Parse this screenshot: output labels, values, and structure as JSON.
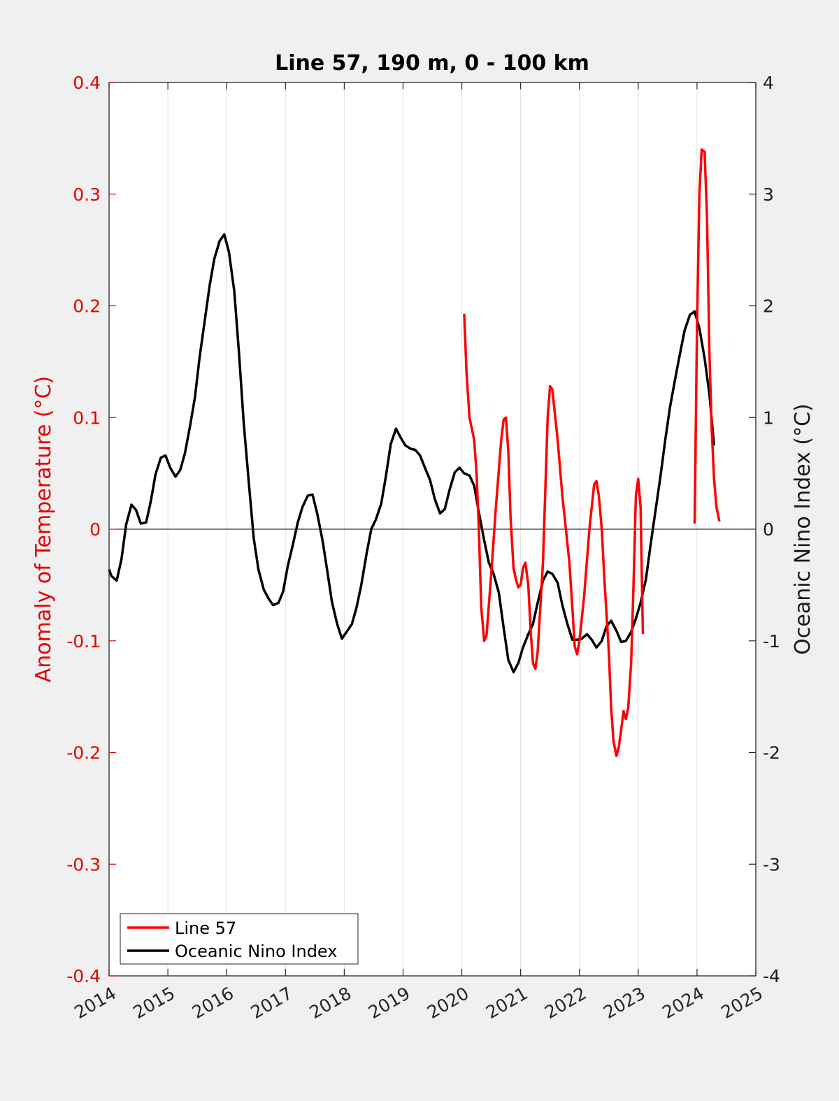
{
  "chart_data": {
    "type": "line",
    "title": "Line 57, 190 m, 0 - 100 km",
    "xlabel": "",
    "ylabel_left": "Anomaly of Temperature (°C)",
    "ylabel_right": "Oceanic Nino Index (°C)",
    "xlim": [
      2014,
      2025
    ],
    "ylim_left": [
      -0.4,
      0.4
    ],
    "ylim_right": [
      -4,
      4
    ],
    "x_ticks": [
      "2014",
      "2015",
      "2016",
      "2017",
      "2018",
      "2019",
      "2020",
      "2021",
      "2022",
      "2023",
      "2024",
      "2025"
    ],
    "y_ticks_left": [
      "-0.4",
      "-0.3",
      "-0.2",
      "-0.1",
      "0",
      "0.1",
      "0.2",
      "0.3",
      "0.4"
    ],
    "y_ticks_right": [
      "-4",
      "-3",
      "-2",
      "-1",
      "0",
      "1",
      "2",
      "3",
      "4"
    ],
    "grid": "vertical",
    "legend_position": "bottom-left",
    "colors": {
      "line57": "#ff0000",
      "oni": "#000000",
      "left_axis": "#e60000",
      "right_axis": "#1a1a1a"
    },
    "series": [
      {
        "name": "Line 57",
        "axis": "left",
        "color": "#ff0000",
        "segments": [
          [
            [
              2020.04,
              0.193
            ],
            [
              2020.08,
              0.14
            ],
            [
              2020.13,
              0.1
            ],
            [
              2020.21,
              0.08
            ],
            [
              2020.25,
              0.05
            ],
            [
              2020.29,
              0.0
            ],
            [
              2020.33,
              -0.07
            ],
            [
              2020.38,
              -0.1
            ],
            [
              2020.42,
              -0.095
            ],
            [
              2020.5,
              -0.04
            ],
            [
              2020.58,
              0.02
            ],
            [
              2020.67,
              0.08
            ],
            [
              2020.71,
              0.098
            ],
            [
              2020.75,
              0.1
            ],
            [
              2020.79,
              0.07
            ],
            [
              2020.83,
              0.01
            ],
            [
              2020.88,
              -0.035
            ],
            [
              2020.92,
              -0.045
            ],
            [
              2020.96,
              -0.052
            ],
            [
              2021.0,
              -0.05
            ],
            [
              2021.04,
              -0.035
            ],
            [
              2021.08,
              -0.03
            ],
            [
              2021.13,
              -0.05
            ],
            [
              2021.17,
              -0.09
            ],
            [
              2021.21,
              -0.12
            ],
            [
              2021.25,
              -0.125
            ],
            [
              2021.29,
              -0.11
            ],
            [
              2021.38,
              -0.03
            ],
            [
              2021.46,
              0.1
            ],
            [
              2021.5,
              0.128
            ],
            [
              2021.54,
              0.125
            ],
            [
              2021.63,
              0.08
            ],
            [
              2021.71,
              0.03
            ],
            [
              2021.79,
              -0.01
            ],
            [
              2021.83,
              -0.03
            ],
            [
              2021.88,
              -0.07
            ],
            [
              2021.92,
              -0.105
            ],
            [
              2021.96,
              -0.112
            ],
            [
              2022.0,
              -0.1
            ],
            [
              2022.08,
              -0.06
            ],
            [
              2022.17,
              0.0
            ],
            [
              2022.21,
              0.02
            ],
            [
              2022.25,
              0.04
            ],
            [
              2022.29,
              0.043
            ],
            [
              2022.33,
              0.03
            ],
            [
              2022.38,
              0.0
            ],
            [
              2022.42,
              -0.04
            ],
            [
              2022.5,
              -0.11
            ],
            [
              2022.54,
              -0.16
            ],
            [
              2022.58,
              -0.19
            ],
            [
              2022.63,
              -0.203
            ],
            [
              2022.67,
              -0.195
            ],
            [
              2022.71,
              -0.18
            ],
            [
              2022.75,
              -0.163
            ],
            [
              2022.79,
              -0.17
            ],
            [
              2022.83,
              -0.16
            ],
            [
              2022.88,
              -0.12
            ],
            [
              2022.92,
              -0.05
            ],
            [
              2022.96,
              0.03
            ],
            [
              2023.0,
              0.045
            ],
            [
              2023.04,
              0.02
            ],
            [
              2023.08,
              -0.094
            ]
          ],
          [
            [
              2023.96,
              0.005
            ],
            [
              2024.0,
              0.18
            ],
            [
              2024.04,
              0.3
            ],
            [
              2024.08,
              0.34
            ],
            [
              2024.13,
              0.338
            ],
            [
              2024.17,
              0.28
            ],
            [
              2024.21,
              0.16
            ],
            [
              2024.25,
              0.09
            ],
            [
              2024.29,
              0.045
            ],
            [
              2024.33,
              0.02
            ],
            [
              2024.38,
              0.007
            ]
          ]
        ]
      },
      {
        "name": "Oceanic Nino Index",
        "axis": "right",
        "color": "#000000",
        "segments": [
          [
            [
              2014.0,
              -0.36
            ],
            [
              2014.04,
              -0.42
            ],
            [
              2014.13,
              -0.46
            ],
            [
              2014.21,
              -0.27
            ],
            [
              2014.29,
              0.04
            ],
            [
              2014.38,
              0.22
            ],
            [
              2014.46,
              0.17
            ],
            [
              2014.54,
              0.05
            ],
            [
              2014.63,
              0.06
            ],
            [
              2014.71,
              0.25
            ],
            [
              2014.79,
              0.49
            ],
            [
              2014.88,
              0.64
            ],
            [
              2014.96,
              0.66
            ],
            [
              2015.04,
              0.55
            ],
            [
              2015.13,
              0.47
            ],
            [
              2015.21,
              0.53
            ],
            [
              2015.29,
              0.68
            ],
            [
              2015.38,
              0.93
            ],
            [
              2015.46,
              1.18
            ],
            [
              2015.54,
              1.54
            ],
            [
              2015.63,
              1.88
            ],
            [
              2015.71,
              2.18
            ],
            [
              2015.79,
              2.42
            ],
            [
              2015.88,
              2.58
            ],
            [
              2015.96,
              2.64
            ],
            [
              2016.04,
              2.48
            ],
            [
              2016.13,
              2.13
            ],
            [
              2016.21,
              1.58
            ],
            [
              2016.29,
              0.95
            ],
            [
              2016.38,
              0.4
            ],
            [
              2016.46,
              -0.08
            ],
            [
              2016.54,
              -0.36
            ],
            [
              2016.63,
              -0.54
            ],
            [
              2016.71,
              -0.62
            ],
            [
              2016.79,
              -0.68
            ],
            [
              2016.88,
              -0.66
            ],
            [
              2016.96,
              -0.56
            ],
            [
              2017.04,
              -0.33
            ],
            [
              2017.13,
              -0.13
            ],
            [
              2017.21,
              0.06
            ],
            [
              2017.29,
              0.2
            ],
            [
              2017.38,
              0.3
            ],
            [
              2017.46,
              0.31
            ],
            [
              2017.54,
              0.14
            ],
            [
              2017.63,
              -0.1
            ],
            [
              2017.71,
              -0.37
            ],
            [
              2017.79,
              -0.65
            ],
            [
              2017.88,
              -0.85
            ],
            [
              2017.96,
              -0.98
            ],
            [
              2018.04,
              -0.92
            ],
            [
              2018.13,
              -0.85
            ],
            [
              2018.21,
              -0.7
            ],
            [
              2018.29,
              -0.5
            ],
            [
              2018.38,
              -0.22
            ],
            [
              2018.46,
              0.0
            ],
            [
              2018.54,
              0.09
            ],
            [
              2018.63,
              0.23
            ],
            [
              2018.71,
              0.48
            ],
            [
              2018.79,
              0.76
            ],
            [
              2018.88,
              0.9
            ],
            [
              2018.96,
              0.82
            ],
            [
              2019.04,
              0.75
            ],
            [
              2019.13,
              0.72
            ],
            [
              2019.21,
              0.71
            ],
            [
              2019.29,
              0.66
            ],
            [
              2019.38,
              0.54
            ],
            [
              2019.46,
              0.44
            ],
            [
              2019.54,
              0.27
            ],
            [
              2019.63,
              0.14
            ],
            [
              2019.71,
              0.18
            ],
            [
              2019.79,
              0.35
            ],
            [
              2019.88,
              0.51
            ],
            [
              2019.96,
              0.55
            ],
            [
              2020.04,
              0.5
            ],
            [
              2020.13,
              0.48
            ],
            [
              2020.21,
              0.39
            ],
            [
              2020.29,
              0.15
            ],
            [
              2020.38,
              -0.1
            ],
            [
              2020.46,
              -0.3
            ],
            [
              2020.54,
              -0.4
            ],
            [
              2020.63,
              -0.57
            ],
            [
              2020.71,
              -0.88
            ],
            [
              2020.79,
              -1.17
            ],
            [
              2020.88,
              -1.28
            ],
            [
              2020.96,
              -1.2
            ],
            [
              2021.04,
              -1.06
            ],
            [
              2021.13,
              -0.94
            ],
            [
              2021.21,
              -0.85
            ],
            [
              2021.29,
              -0.66
            ],
            [
              2021.38,
              -0.46
            ],
            [
              2021.46,
              -0.38
            ],
            [
              2021.54,
              -0.4
            ],
            [
              2021.63,
              -0.48
            ],
            [
              2021.71,
              -0.68
            ],
            [
              2021.79,
              -0.84
            ],
            [
              2021.88,
              -0.99
            ],
            [
              2021.96,
              -0.99
            ],
            [
              2022.04,
              -0.98
            ],
            [
              2022.13,
              -0.94
            ],
            [
              2022.21,
              -0.99
            ],
            [
              2022.29,
              -1.06
            ],
            [
              2022.38,
              -1.0
            ],
            [
              2022.46,
              -0.87
            ],
            [
              2022.54,
              -0.82
            ],
            [
              2022.63,
              -0.91
            ],
            [
              2022.71,
              -1.01
            ],
            [
              2022.79,
              -1.0
            ],
            [
              2022.88,
              -0.92
            ],
            [
              2022.96,
              -0.8
            ],
            [
              2023.04,
              -0.66
            ],
            [
              2023.13,
              -0.45
            ],
            [
              2023.21,
              -0.14
            ],
            [
              2023.29,
              0.15
            ],
            [
              2023.38,
              0.48
            ],
            [
              2023.46,
              0.8
            ],
            [
              2023.54,
              1.09
            ],
            [
              2023.63,
              1.35
            ],
            [
              2023.71,
              1.57
            ],
            [
              2023.79,
              1.78
            ],
            [
              2023.88,
              1.92
            ],
            [
              2023.96,
              1.95
            ],
            [
              2024.04,
              1.8
            ],
            [
              2024.13,
              1.53
            ],
            [
              2024.21,
              1.21
            ],
            [
              2024.29,
              0.75
            ]
          ]
        ]
      }
    ]
  }
}
